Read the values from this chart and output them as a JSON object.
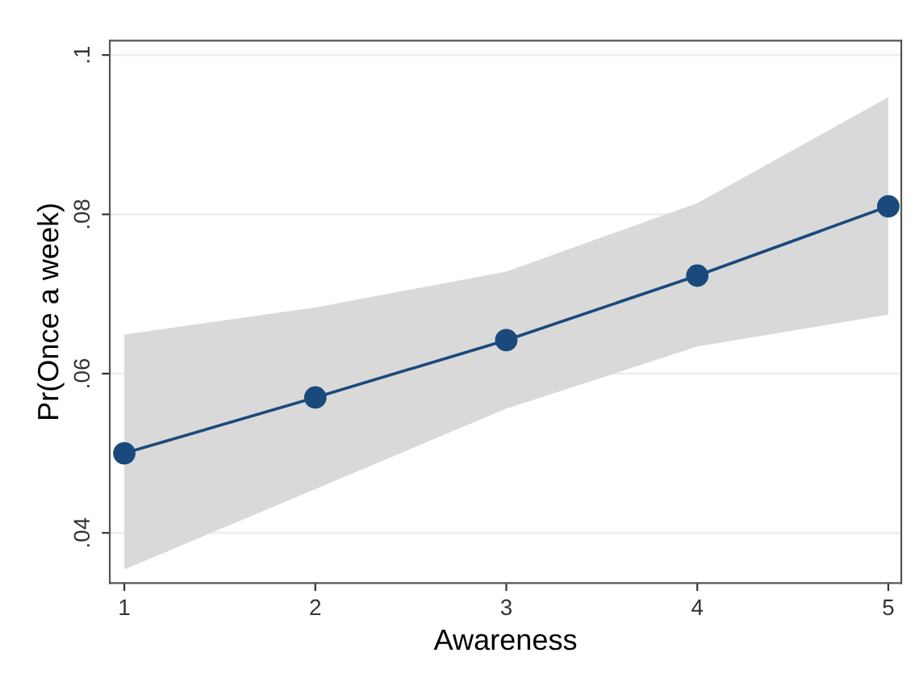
{
  "chart_data": {
    "type": "line",
    "xlabel": "Awareness",
    "ylabel": "Pr(Once a week)",
    "x": [
      1,
      2,
      3,
      4,
      5
    ],
    "series": [
      {
        "color": "#1a4a7c",
        "values": [
          0.05,
          0.057,
          0.0642,
          0.0723,
          0.081
        ],
        "lower": [
          0.0354,
          0.0455,
          0.0556,
          0.0634,
          0.0674
        ],
        "upper": [
          0.0649,
          0.0683,
          0.0728,
          0.0814,
          0.0947
        ]
      }
    ],
    "xlim": [
      0.924,
      5.068
    ],
    "xticks": [
      1,
      2,
      3,
      4,
      5
    ],
    "ylim": [
      0.0337,
      0.1018
    ],
    "yticks": [
      {
        "value": 0.04,
        "label": ".04"
      },
      {
        "value": 0.06,
        "label": ".06"
      },
      {
        "value": 0.08,
        "label": ".08"
      },
      {
        "value": 0.1,
        "label": ".1"
      }
    ],
    "grid": "y",
    "marker": "circle",
    "line_style": "solid",
    "legend": false
  }
}
